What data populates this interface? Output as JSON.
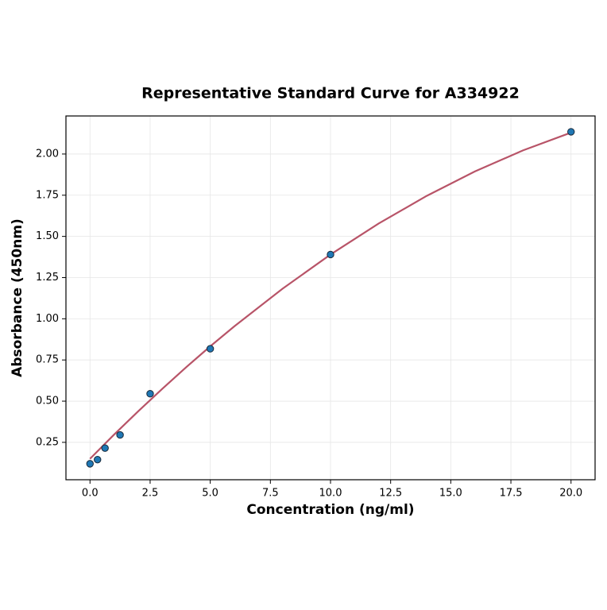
{
  "chart_data": {
    "type": "scatter",
    "title": "Representative Standard Curve for A334922",
    "x_label": "Concentration (ng/ml)",
    "y_label": "Absorbance (450nm)",
    "xlim": [
      -1.0,
      21.0
    ],
    "ylim": [
      0.023,
      2.231
    ],
    "xticks": [
      {
        "value": 0,
        "label": "0.0"
      },
      2.5,
      {
        "value": 5,
        "label": "5.0"
      },
      7.5,
      {
        "value": 10,
        "label": "10.0"
      },
      12.5,
      {
        "value": 15,
        "label": "15.0"
      },
      17.5,
      {
        "value": 20,
        "label": "20.0"
      }
    ],
    "yticks": [
      0.25,
      {
        "value": 0.5,
        "label": "0.50"
      },
      0.75,
      {
        "value": 1,
        "label": "1.00"
      },
      1.25,
      {
        "value": 1.5,
        "label": "1.50"
      },
      1.75,
      {
        "value": 2,
        "label": "2.00"
      }
    ],
    "grid": true,
    "series": [
      {
        "mode": "markers",
        "color": "#1f77b4",
        "x": [
          0,
          0.3125,
          0.625,
          1.25,
          2.5,
          5,
          10,
          20
        ],
        "values": [
          0.12,
          0.145,
          0.215,
          0.295,
          0.545,
          0.818,
          1.39,
          2.135
        ]
      },
      {
        "mode": "line",
        "color": "#b85468",
        "x": [
          0,
          1,
          2,
          3,
          4,
          5,
          6,
          8,
          10,
          12,
          14,
          16,
          18,
          20
        ],
        "values": [
          0.15,
          0.297,
          0.438,
          0.574,
          0.706,
          0.833,
          0.954,
          1.182,
          1.39,
          1.578,
          1.746,
          1.894,
          2.022,
          2.13
        ]
      }
    ]
  }
}
